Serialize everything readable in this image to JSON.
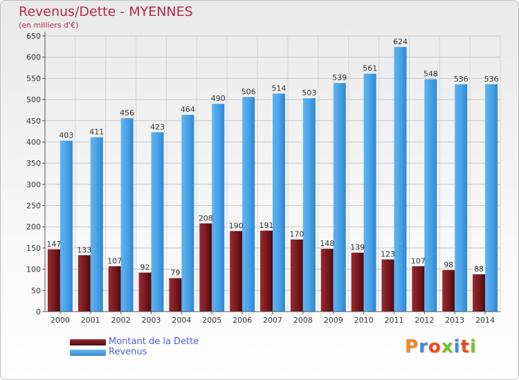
{
  "chart_data": {
    "type": "bar",
    "title": "Revenus/Dette - MYENNES",
    "subtitle": "(en milliers d'€)",
    "categories": [
      "2000",
      "2001",
      "2002",
      "2003",
      "2004",
      "2005",
      "2006",
      "2007",
      "2008",
      "2009",
      "2010",
      "2011",
      "2012",
      "2013",
      "2014"
    ],
    "series": [
      {
        "name": "Montant de la Dette",
        "color": "#7b1a1f",
        "values": [
          147,
          133,
          107,
          92,
          79,
          208,
          190,
          191,
          170,
          148,
          139,
          123,
          107,
          98,
          88
        ]
      },
      {
        "name": "Revenus",
        "color": "#4aa3e8",
        "values": [
          403,
          411,
          456,
          423,
          464,
          490,
          506,
          514,
          503,
          539,
          561,
          624,
          548,
          536,
          536
        ]
      }
    ],
    "ylim": [
      0,
      650
    ],
    "yticks": [
      0,
      50,
      100,
      150,
      200,
      250,
      300,
      350,
      400,
      450,
      500,
      550,
      600,
      650
    ],
    "grid": true,
    "legend_position": "bottom-left"
  },
  "branding": {
    "logo_text": "Proxiti"
  }
}
